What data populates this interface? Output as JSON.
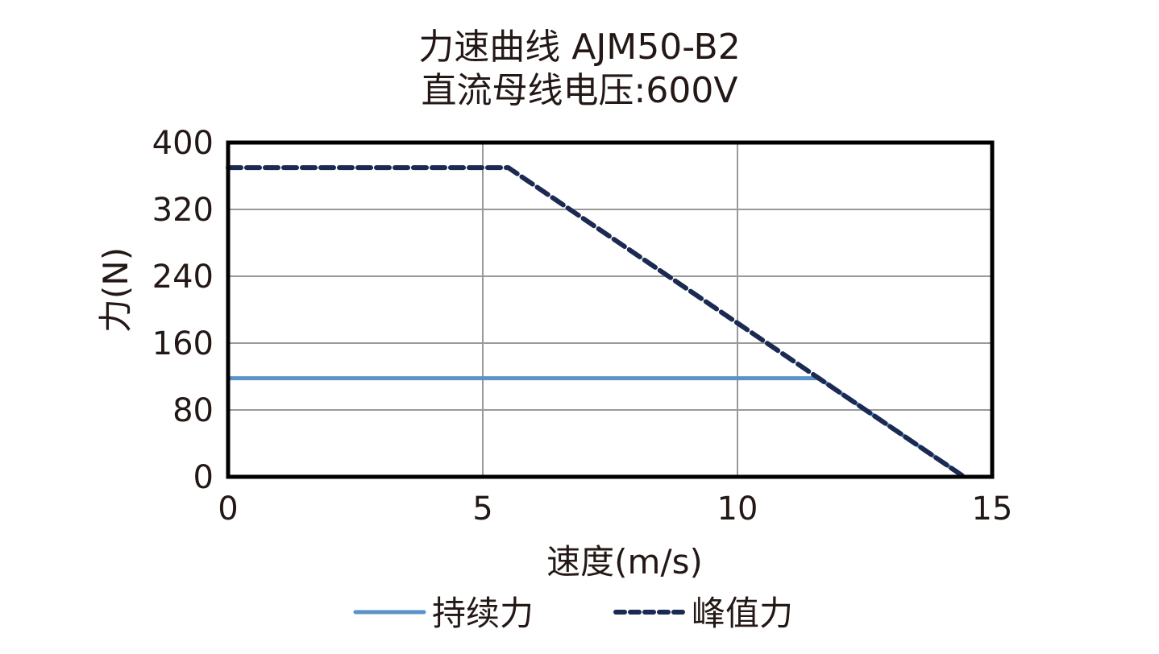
{
  "chart_data": {
    "type": "line",
    "title": "力速曲线 AJM50-B2",
    "subtitle": "直流母线电压:600V",
    "xlabel": "速度(m/s)",
    "ylabel": "力(N)",
    "xlim": [
      0,
      15
    ],
    "ylim": [
      0,
      400
    ],
    "xticks": [
      0,
      5,
      10,
      15
    ],
    "yticks": [
      0,
      80,
      160,
      240,
      320,
      400
    ],
    "grid": true,
    "legend_position": "bottom",
    "series": [
      {
        "name": "持续力",
        "style": "solid",
        "color": "#5b93c9",
        "x": [
          0,
          11.6,
          14.45
        ],
        "y": [
          118,
          118,
          0
        ]
      },
      {
        "name": "峰值力",
        "style": "dashed",
        "color": "#1b2a52",
        "x": [
          0,
          5.5,
          14.45
        ],
        "y": [
          370,
          370,
          0
        ]
      }
    ]
  },
  "labels": {
    "title": "力速曲线 AJM50-B2",
    "subtitle": "直流母线电压:600V",
    "xlabel": "速度(m/s)",
    "ylabel": "力(N)",
    "legend_continuous": "持续力",
    "legend_peak": "峰值力"
  }
}
